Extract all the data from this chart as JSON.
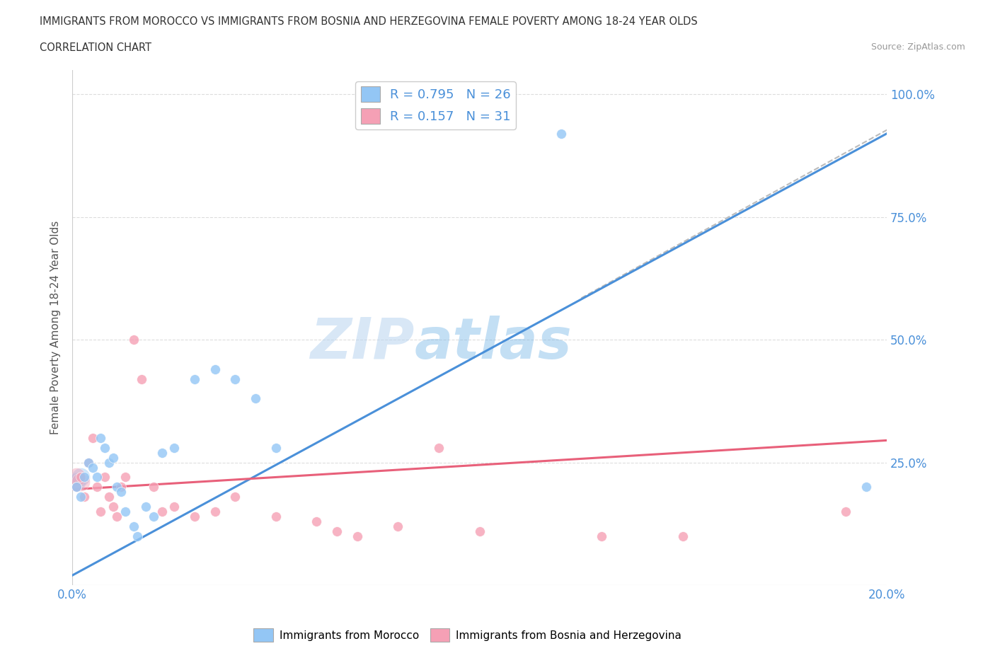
{
  "title_line1": "IMMIGRANTS FROM MOROCCO VS IMMIGRANTS FROM BOSNIA AND HERZEGOVINA FEMALE POVERTY AMONG 18-24 YEAR OLDS",
  "title_line2": "CORRELATION CHART",
  "source": "Source: ZipAtlas.com",
  "ylabel": "Female Poverty Among 18-24 Year Olds",
  "xlim": [
    0.0,
    0.2
  ],
  "ylim": [
    0.0,
    1.05
  ],
  "morocco_color": "#93c6f5",
  "bosnia_color": "#f5a0b5",
  "morocco_line_color": "#4a90d9",
  "bosnia_line_color": "#e8607a",
  "R_morocco": 0.795,
  "N_morocco": 26,
  "R_bosnia": 0.157,
  "N_bosnia": 31,
  "watermark_ZIP": "ZIP",
  "watermark_atlas": "atlas",
  "background_color": "#ffffff",
  "morocco_x": [
    0.001,
    0.002,
    0.003,
    0.004,
    0.005,
    0.006,
    0.007,
    0.008,
    0.009,
    0.01,
    0.011,
    0.012,
    0.013,
    0.015,
    0.016,
    0.018,
    0.02,
    0.022,
    0.025,
    0.03,
    0.035,
    0.04,
    0.045,
    0.05,
    0.12,
    0.195
  ],
  "morocco_y": [
    0.2,
    0.18,
    0.22,
    0.25,
    0.24,
    0.22,
    0.3,
    0.28,
    0.25,
    0.26,
    0.2,
    0.19,
    0.15,
    0.12,
    0.1,
    0.16,
    0.14,
    0.27,
    0.28,
    0.42,
    0.44,
    0.42,
    0.38,
    0.28,
    0.92,
    0.2
  ],
  "bosnia_x": [
    0.001,
    0.002,
    0.003,
    0.004,
    0.005,
    0.006,
    0.007,
    0.008,
    0.009,
    0.01,
    0.011,
    0.012,
    0.013,
    0.015,
    0.017,
    0.02,
    0.022,
    0.025,
    0.03,
    0.035,
    0.04,
    0.05,
    0.06,
    0.065,
    0.07,
    0.08,
    0.09,
    0.1,
    0.13,
    0.15,
    0.19
  ],
  "bosnia_y": [
    0.2,
    0.22,
    0.18,
    0.25,
    0.3,
    0.2,
    0.15,
    0.22,
    0.18,
    0.16,
    0.14,
    0.2,
    0.22,
    0.5,
    0.42,
    0.2,
    0.15,
    0.16,
    0.14,
    0.15,
    0.18,
    0.14,
    0.13,
    0.11,
    0.1,
    0.12,
    0.28,
    0.11,
    0.1,
    0.1,
    0.15
  ]
}
